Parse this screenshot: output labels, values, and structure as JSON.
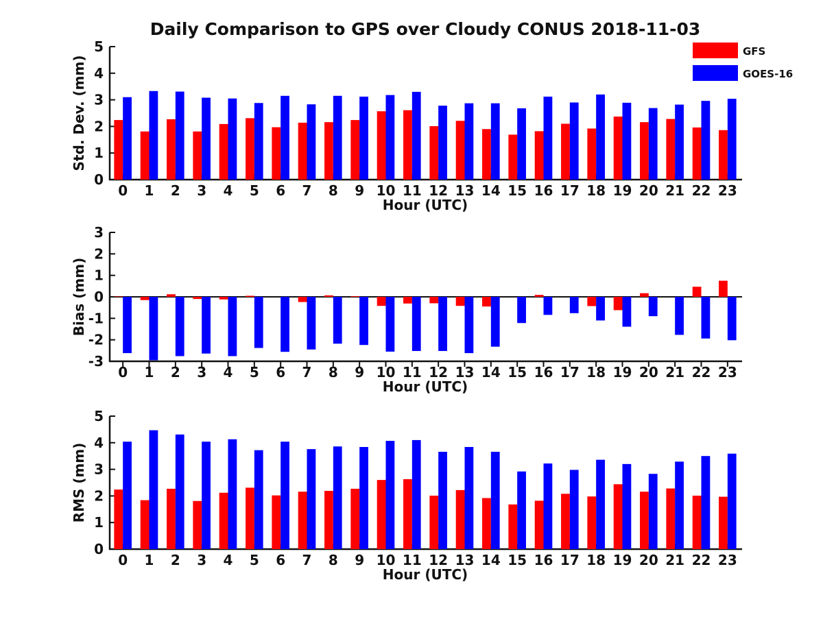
{
  "title": "Daily Comparison to GPS over Cloudy CONUS 2018-11-03",
  "legend": {
    "position": "top-right",
    "items": [
      {
        "label": "GFS",
        "color": "#ff0000"
      },
      {
        "label": "GOES-16",
        "color": "#0000ff"
      }
    ]
  },
  "chart_data": [
    {
      "type": "bar",
      "title": "",
      "ylabel": "Std. Dev. (mm)",
      "xlabel": "Hour (UTC)",
      "ylim": [
        0,
        5
      ],
      "yticks": [
        0,
        1,
        2,
        3,
        4,
        5
      ],
      "grid": false,
      "legend_position": "top-right",
      "categories": [
        "0",
        "1",
        "2",
        "3",
        "4",
        "5",
        "6",
        "7",
        "8",
        "9",
        "10",
        "11",
        "12",
        "13",
        "14",
        "15",
        "16",
        "17",
        "18",
        "19",
        "20",
        "21",
        "22",
        "23"
      ],
      "series": [
        {
          "name": "GFS",
          "color": "#ff0000",
          "values": [
            2.24,
            1.81,
            2.27,
            1.81,
            2.09,
            2.31,
            1.97,
            2.14,
            2.16,
            2.24,
            2.57,
            2.61,
            2.01,
            2.21,
            1.9,
            1.69,
            1.82,
            2.1,
            1.92,
            2.37,
            2.16,
            2.28,
            1.96,
            1.86
          ]
        },
        {
          "name": "GOES-16",
          "color": "#0000ff",
          "values": [
            3.1,
            3.33,
            3.31,
            3.08,
            3.05,
            2.88,
            3.15,
            2.83,
            3.15,
            3.12,
            3.18,
            3.3,
            2.78,
            2.87,
            2.87,
            2.68,
            3.12,
            2.9,
            3.2,
            2.89,
            2.69,
            2.82,
            2.96,
            3.04
          ]
        }
      ]
    },
    {
      "type": "bar",
      "title": "",
      "ylabel": "Bias (mm)",
      "xlabel": "Hour (UTC)",
      "ylim": [
        -3,
        3
      ],
      "yticks": [
        -3,
        -2,
        -1,
        0,
        1,
        2,
        3
      ],
      "grid": false,
      "zero_line": true,
      "categories": [
        "0",
        "1",
        "2",
        "3",
        "4",
        "5",
        "6",
        "7",
        "8",
        "9",
        "10",
        "11",
        "12",
        "13",
        "14",
        "15",
        "16",
        "17",
        "18",
        "19",
        "20",
        "21",
        "22",
        "23"
      ],
      "series": [
        {
          "name": "GFS",
          "color": "#ff0000",
          "values": [
            0.02,
            -0.15,
            0.12,
            -0.1,
            -0.12,
            0.05,
            0.0,
            -0.24,
            0.07,
            0.03,
            -0.42,
            -0.31,
            -0.3,
            -0.42,
            -0.45,
            0.0,
            0.09,
            0.0,
            -0.43,
            -0.62,
            0.17,
            0.0,
            0.47,
            0.75
          ]
        },
        {
          "name": "GOES-16",
          "color": "#0000ff",
          "values": [
            -2.62,
            -2.95,
            -2.76,
            -2.64,
            -2.76,
            -2.38,
            -2.56,
            -2.45,
            -2.18,
            -2.24,
            -2.55,
            -2.52,
            -2.52,
            -2.62,
            -2.32,
            -1.22,
            -0.84,
            -0.76,
            -1.1,
            -1.39,
            -0.9,
            -1.77,
            -1.94,
            -2.02
          ]
        }
      ]
    },
    {
      "type": "bar",
      "title": "",
      "ylabel": "RMS (mm)",
      "xlabel": "Hour (UTC)",
      "ylim": [
        0,
        5
      ],
      "yticks": [
        0,
        1,
        2,
        3,
        4,
        5
      ],
      "grid": false,
      "categories": [
        "0",
        "1",
        "2",
        "3",
        "4",
        "5",
        "6",
        "7",
        "8",
        "9",
        "10",
        "11",
        "12",
        "13",
        "14",
        "15",
        "16",
        "17",
        "18",
        "19",
        "20",
        "21",
        "22",
        "23"
      ],
      "series": [
        {
          "name": "GFS",
          "color": "#ff0000",
          "values": [
            2.24,
            1.84,
            2.27,
            1.81,
            2.12,
            2.31,
            2.02,
            2.16,
            2.19,
            2.27,
            2.6,
            2.63,
            2.01,
            2.22,
            1.92,
            1.68,
            1.82,
            2.08,
            1.98,
            2.44,
            2.16,
            2.28,
            2.01,
            1.97
          ]
        },
        {
          "name": "GOES-16",
          "color": "#0000ff",
          "values": [
            4.04,
            4.47,
            4.31,
            4.04,
            4.13,
            3.72,
            4.04,
            3.76,
            3.86,
            3.84,
            4.07,
            4.1,
            3.66,
            3.84,
            3.66,
            2.92,
            3.22,
            2.98,
            3.36,
            3.2,
            2.83,
            3.29,
            3.5,
            3.59
          ]
        }
      ]
    }
  ]
}
